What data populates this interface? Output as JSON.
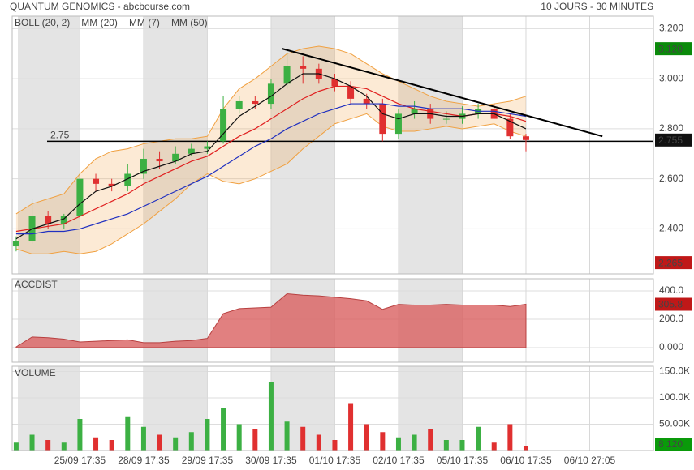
{
  "header": {
    "title": "QUANTUM GENOMICS - abcbourse.com",
    "period": "10 JOURS - 30 MINUTES"
  },
  "chart_data": [
    {
      "type": "candlestick",
      "x": [
        0,
        1,
        2,
        3,
        4,
        5,
        6,
        7,
        8,
        9,
        10,
        11,
        12,
        13,
        14,
        15,
        16,
        17,
        18,
        19,
        20,
        21,
        22,
        23,
        24,
        25,
        26,
        27,
        28,
        29,
        30,
        31,
        32
      ],
      "open": [
        2.33,
        2.35,
        2.45,
        2.42,
        2.45,
        2.6,
        2.58,
        2.57,
        2.62,
        2.68,
        2.67,
        2.7,
        2.72,
        2.75,
        2.88,
        2.91,
        2.9,
        2.98,
        3.05,
        3.04,
        3.0,
        2.97,
        2.92,
        2.9,
        2.78,
        2.86,
        2.88,
        2.84,
        2.84,
        2.86,
        2.88,
        2.84,
        2.77
      ],
      "high": [
        2.37,
        2.52,
        2.47,
        2.46,
        2.62,
        2.62,
        2.6,
        2.66,
        2.72,
        2.71,
        2.73,
        2.74,
        2.75,
        2.93,
        2.93,
        2.93,
        3.0,
        3.12,
        3.09,
        3.06,
        3.02,
        2.99,
        2.94,
        2.92,
        2.88,
        2.91,
        2.9,
        2.87,
        2.89,
        2.9,
        2.9,
        2.86,
        2.78
      ],
      "low": [
        2.31,
        2.34,
        2.4,
        2.4,
        2.44,
        2.55,
        2.55,
        2.55,
        2.6,
        2.64,
        2.66,
        2.69,
        2.7,
        2.74,
        2.86,
        2.88,
        2.88,
        2.96,
        2.98,
        2.98,
        2.95,
        2.9,
        2.88,
        2.75,
        2.76,
        2.84,
        2.82,
        2.82,
        2.82,
        2.84,
        2.84,
        2.76,
        2.71
      ],
      "close": [
        2.35,
        2.45,
        2.42,
        2.45,
        2.6,
        2.58,
        2.57,
        2.62,
        2.68,
        2.67,
        2.7,
        2.72,
        2.73,
        2.88,
        2.91,
        2.9,
        2.98,
        3.05,
        3.04,
        3.0,
        2.97,
        2.92,
        2.9,
        2.78,
        2.86,
        2.88,
        2.84,
        2.84,
        2.86,
        2.88,
        2.84,
        2.77,
        2.755
      ],
      "up_color": "#3cb043",
      "down_color": "#e03030",
      "bands": {
        "name": "BOLL (20, 2)",
        "color": "#f0a040",
        "upper": [
          2.46,
          2.5,
          2.52,
          2.54,
          2.62,
          2.68,
          2.71,
          2.72,
          2.74,
          2.75,
          2.76,
          2.76,
          2.77,
          2.88,
          2.96,
          3.0,
          3.05,
          3.1,
          3.12,
          3.13,
          3.12,
          3.1,
          3.06,
          3.02,
          2.99,
          2.96,
          2.93,
          2.91,
          2.9,
          2.89,
          2.9,
          2.91,
          2.93
        ],
        "lower": [
          2.32,
          2.3,
          2.3,
          2.31,
          2.3,
          2.31,
          2.34,
          2.38,
          2.42,
          2.47,
          2.52,
          2.58,
          2.62,
          2.59,
          2.58,
          2.6,
          2.63,
          2.66,
          2.72,
          2.77,
          2.82,
          2.84,
          2.86,
          2.81,
          2.79,
          2.79,
          2.8,
          2.81,
          2.8,
          2.81,
          2.82,
          2.79,
          2.77
        ]
      },
      "series": [
        {
          "name": "MM (20)",
          "color": "#e02020",
          "values": [
            2.39,
            2.4,
            2.41,
            2.42,
            2.45,
            2.48,
            2.51,
            2.54,
            2.58,
            2.61,
            2.64,
            2.67,
            2.69,
            2.73,
            2.77,
            2.8,
            2.84,
            2.88,
            2.92,
            2.95,
            2.97,
            2.97,
            2.96,
            2.93,
            2.9,
            2.88,
            2.87,
            2.86,
            2.85,
            2.86,
            2.86,
            2.85,
            2.83
          ]
        },
        {
          "name": "MM (7)",
          "color": "#111111",
          "values": [
            2.36,
            2.4,
            2.42,
            2.44,
            2.5,
            2.55,
            2.57,
            2.6,
            2.63,
            2.65,
            2.67,
            2.7,
            2.71,
            2.78,
            2.85,
            2.89,
            2.93,
            2.98,
            3.02,
            3.02,
            3.0,
            2.97,
            2.93,
            2.86,
            2.84,
            2.86,
            2.86,
            2.85,
            2.85,
            2.86,
            2.86,
            2.83,
            2.8
          ]
        },
        {
          "name": "MM (50)",
          "color": "#2030c0",
          "values": [
            2.38,
            2.38,
            2.39,
            2.39,
            2.4,
            2.42,
            2.44,
            2.46,
            2.49,
            2.52,
            2.55,
            2.58,
            2.61,
            2.65,
            2.69,
            2.73,
            2.76,
            2.8,
            2.83,
            2.86,
            2.88,
            2.9,
            2.9,
            2.9,
            2.89,
            2.89,
            2.88,
            2.88,
            2.88,
            2.87,
            2.87,
            2.86,
            2.85
          ]
        }
      ],
      "ylim": [
        2.22,
        3.25
      ],
      "yticks": [
        {
          "value": 3.2,
          "label": "3.200"
        },
        {
          "value": 3.0,
          "label": "3.000"
        },
        {
          "value": 2.8,
          "label": "2.800"
        },
        {
          "value": 2.6,
          "label": "2.600"
        },
        {
          "value": 2.4,
          "label": "2.400"
        }
      ],
      "hline": {
        "label": "2.75",
        "value": 2.75
      },
      "trendline": {
        "x": [
          16.7,
          36.8
        ],
        "y": [
          3.12,
          2.77
        ]
      },
      "value_boxes": [
        {
          "value": 3.12,
          "label": "3.120",
          "color": "#0a8a0a"
        },
        {
          "value": 2.755,
          "label": "2.755",
          "color": "#111111"
        },
        {
          "value": 2.265,
          "label": "2.265",
          "color": "#c01818"
        }
      ],
      "grid": true
    },
    {
      "type": "area",
      "title": "ACCDIST",
      "color": "#d96060",
      "values": [
        5,
        75,
        70,
        60,
        40,
        45,
        50,
        55,
        35,
        35,
        45,
        50,
        65,
        240,
        275,
        280,
        285,
        380,
        370,
        365,
        355,
        345,
        330,
        270,
        305,
        300,
        300,
        305,
        300,
        300,
        300,
        290,
        305.8
      ],
      "ylim": [
        -103,
        486
      ],
      "yticks": [
        {
          "value": 400,
          "label": "400.0"
        },
        {
          "value": 200,
          "label": "200.0"
        },
        {
          "value": 0,
          "label": "0.000"
        }
      ],
      "value_boxes": [
        {
          "value": 305.8,
          "label": "305.8",
          "color": "#c01818"
        }
      ],
      "grid": true
    },
    {
      "type": "bar",
      "title": "VOLUME",
      "values": [
        15000,
        30000,
        20000,
        15000,
        60000,
        25000,
        20000,
        65000,
        45000,
        30000,
        25000,
        35000,
        60000,
        80000,
        50000,
        40000,
        130000,
        55000,
        45000,
        30000,
        20000,
        90000,
        50000,
        35000,
        25000,
        30000,
        40000,
        20000,
        20000,
        45000,
        15000,
        50000,
        8120
      ],
      "ylim": [
        0,
        160000
      ],
      "yticks": [
        {
          "value": 150000,
          "label": "150.0K"
        },
        {
          "value": 100000,
          "label": "100.0K"
        },
        {
          "value": 50000,
          "label": "50.00K"
        }
      ],
      "value_boxes": [
        {
          "value": 8120,
          "label": "8 120",
          "color": "#0a9a0a"
        }
      ],
      "xlim": [
        -0.25,
        40
      ],
      "xticks": [
        {
          "value": 4,
          "label": "25/09 17:35"
        },
        {
          "value": 8,
          "label": "28/09 17:35"
        },
        {
          "value": 12,
          "label": "29/09 17:35"
        },
        {
          "value": 16,
          "label": "30/09 17:35"
        },
        {
          "value": 20,
          "label": "01/10 17:35"
        },
        {
          "value": 24,
          "label": "02/10 17:35"
        },
        {
          "value": 28,
          "label": "05/10 17:35"
        },
        {
          "value": 32,
          "label": "06/10 17:35"
        },
        {
          "value": 36,
          "label": "06/10 27:05"
        }
      ],
      "grid": true
    }
  ]
}
